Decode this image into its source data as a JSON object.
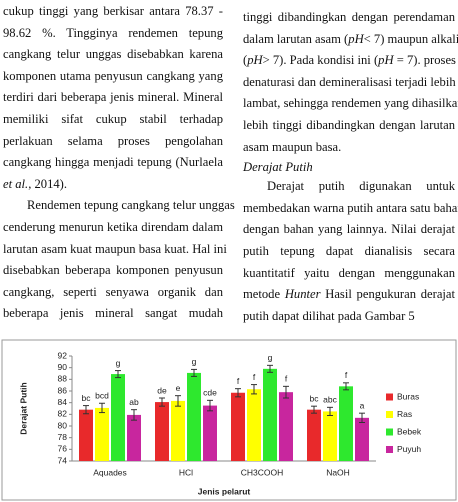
{
  "left_column": {
    "paragraphs": [
      {
        "indent": false,
        "lines": [
          "cukup tinggi yang berkisar antara 78.37 -",
          "98.62 %. Tingginya rendemen tepung",
          "cangkang telur unggas disebabkan karena",
          "komponen utama penyusun cangkang yang",
          "terdiri dari beberapa jenis mineral. Mineral",
          "memiliki sifat cukup stabil terhadap",
          "perlakuan selama proses pengolahan",
          "cangkang hingga menjadi tepung (Nurlaela",
          [
            {
              "text": "et al.",
              "italic": true
            },
            {
              "text": ", 2014).",
              "italic": false
            }
          ]
        ]
      },
      {
        "indent": true,
        "lines": [
          "Rendemen tepung cangkang telur unggas",
          "cenderung menurun ketika direndam dalam",
          "larutan asam kuat maupun basa kuat. Hal ini",
          "disebabkan beberapa komponen penyusun",
          "cangkang, seperti senyawa organik dan",
          "beberapa jenis mineral sangat mudah"
        ],
        "continues": true
      }
    ]
  },
  "right_column": {
    "paragraphs": [
      {
        "indent": false,
        "lines": [
          "tinggi dibandingkan dengan perendaman",
          [
            {
              "text": "dalam larutan asam (",
              "italic": false
            },
            {
              "text": "pH",
              "italic": true
            },
            {
              "text": "< 7) maupun alkali",
              "italic": false
            }
          ],
          [
            {
              "text": "(",
              "italic": false
            },
            {
              "text": "pH",
              "italic": true
            },
            {
              "text": "> 7). Pada kondisi ini (",
              "italic": false
            },
            {
              "text": "pH",
              "italic": true
            },
            {
              "text": " = 7). proses",
              "italic": false
            }
          ],
          "denaturasi dan demineralisasi terjadi lebih",
          "lambat, sehingga rendemen yang dihasilkan",
          "lebih tinggi dibandingkan dengan larutan",
          "asam maupun basa."
        ]
      },
      {
        "heading": "Derajat Putih"
      },
      {
        "indent": true,
        "lines": [
          "Derajat putih digunakan untuk",
          "membedakan warna putih antara satu bahan",
          "dengan bahan yang lainnya. Nilai derajat",
          "putih tepung dapat dianalisis secara",
          "kuantitatif yaitu dengan menggunakan",
          [
            {
              "text": "metode ",
              "italic": false
            },
            {
              "text": "Hunter",
              "italic": true
            },
            {
              "text": " Hasil pengukuran derajat",
              "italic": false
            }
          ],
          "putih dapat dilihat pada Gambar 5"
        ]
      }
    ]
  },
  "chart_data": {
    "type": "bar",
    "x_label": "Jenis pelarut",
    "y_label": "Derajat Putih",
    "categories": [
      "Aquades",
      "HCl",
      "CH3COOH",
      "NaOH"
    ],
    "ylim": [
      74,
      92
    ],
    "yticks": [
      74,
      76,
      78,
      80,
      82,
      84,
      86,
      88,
      90,
      92
    ],
    "grid": false,
    "legend": "right",
    "series": [
      {
        "name": "Buras",
        "color": "#e8292b",
        "values": [
          82.8,
          84.1,
          85.7,
          82.8
        ],
        "errors": [
          0.7,
          0.7,
          0.7,
          0.6
        ],
        "letters": [
          "bc",
          "de",
          "f",
          "bc"
        ]
      },
      {
        "name": "Ras",
        "color": "#ffff00",
        "values": [
          83.1,
          84.3,
          86.3,
          82.5
        ],
        "errors": [
          0.8,
          0.9,
          0.8,
          0.7
        ],
        "letters": [
          "bcd",
          "e",
          "f",
          "abc"
        ]
      },
      {
        "name": "Bebek",
        "color": "#2ee82e",
        "values": [
          88.9,
          89.1,
          89.8,
          86.8
        ],
        "errors": [
          0.6,
          0.6,
          0.6,
          0.6
        ],
        "letters": [
          "g",
          "g",
          "g",
          "f"
        ]
      },
      {
        "name": "Puyuh",
        "color": "#c8269e",
        "values": [
          81.9,
          83.5,
          85.8,
          81.4
        ],
        "errors": [
          0.9,
          0.9,
          1.0,
          0.8
        ],
        "letters": [
          "ab",
          "cde",
          "f",
          "a"
        ]
      }
    ]
  }
}
